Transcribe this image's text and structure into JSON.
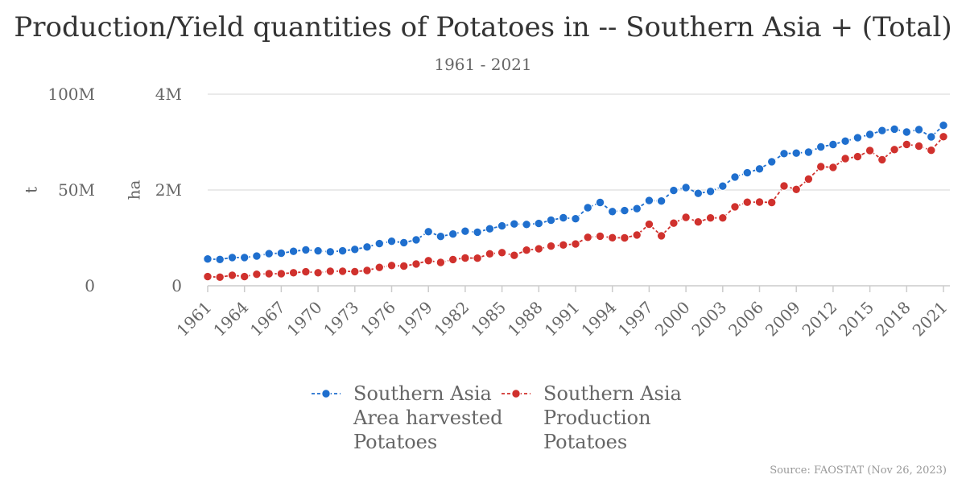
{
  "title": "Production/Yield quantities of Potatoes in -- Southern Asia + (Total)",
  "subtitle": "1961 - 2021",
  "source": "Source: FAOSTAT (Nov 26, 2023)",
  "chart_data": {
    "type": "line",
    "x": [
      1961,
      1962,
      1963,
      1964,
      1965,
      1966,
      1967,
      1968,
      1969,
      1970,
      1971,
      1972,
      1973,
      1974,
      1975,
      1976,
      1977,
      1978,
      1979,
      1980,
      1981,
      1982,
      1983,
      1984,
      1985,
      1986,
      1987,
      1988,
      1989,
      1990,
      1991,
      1992,
      1993,
      1994,
      1995,
      1996,
      1997,
      1998,
      1999,
      2000,
      2001,
      2002,
      2003,
      2004,
      2005,
      2006,
      2007,
      2008,
      2009,
      2010,
      2011,
      2012,
      2013,
      2014,
      2015,
      2016,
      2017,
      2018,
      2019,
      2020,
      2021
    ],
    "x_tick_labels": [
      "1961",
      "1964",
      "1967",
      "1970",
      "1973",
      "1976",
      "1979",
      "1982",
      "1985",
      "1988",
      "1991",
      "1994",
      "1997",
      "2000",
      "2003",
      "2006",
      "2009",
      "2012",
      "2015",
      "2018",
      "2021"
    ],
    "y_left": {
      "label": "t",
      "ticks": [
        "0",
        "50M",
        "100M"
      ],
      "range": [
        0,
        100000000
      ]
    },
    "y_right": {
      "label": "ha",
      "ticks": [
        "0",
        "2M",
        "4M"
      ],
      "range": [
        0,
        4000000
      ]
    },
    "grid": true,
    "legend_position": "bottom",
    "series": [
      {
        "name": "Southern Asia Area harvested Potatoes",
        "name_lines": [
          "Southern Asia",
          "Area harvested",
          "Potatoes"
        ],
        "axis": "right",
        "color": "#1f6fce",
        "values": [
          560000,
          550000,
          590000,
          590000,
          620000,
          670000,
          680000,
          720000,
          750000,
          730000,
          710000,
          730000,
          760000,
          810000,
          880000,
          930000,
          900000,
          960000,
          1130000,
          1030000,
          1080000,
          1140000,
          1120000,
          1190000,
          1250000,
          1290000,
          1280000,
          1300000,
          1370000,
          1420000,
          1400000,
          1630000,
          1740000,
          1550000,
          1570000,
          1610000,
          1780000,
          1770000,
          1990000,
          2050000,
          1930000,
          1970000,
          2080000,
          2270000,
          2360000,
          2440000,
          2590000,
          2760000,
          2770000,
          2790000,
          2900000,
          2950000,
          3020000,
          3090000,
          3160000,
          3240000,
          3270000,
          3210000,
          3260000,
          3110000,
          3350000
        ]
      },
      {
        "name": "Southern Asia Production Potatoes",
        "name_lines": [
          "Southern Asia",
          "Production",
          "Potatoes"
        ],
        "axis": "left",
        "color": "#d0312d",
        "values": [
          4800000,
          4500000,
          5500000,
          4800000,
          6000000,
          6300000,
          6300000,
          6800000,
          7300000,
          6800000,
          7600000,
          7600000,
          7400000,
          8000000,
          9600000,
          10600000,
          10300000,
          11400000,
          13100000,
          12200000,
          13700000,
          14500000,
          14400000,
          16700000,
          17300000,
          15900000,
          18600000,
          19300000,
          20700000,
          21300000,
          21800000,
          25300000,
          25900000,
          25100000,
          25000000,
          26500000,
          32100000,
          26100000,
          32700000,
          35700000,
          33300000,
          35400000,
          35400000,
          41200000,
          43600000,
          43700000,
          43500000,
          52100000,
          50300000,
          55700000,
          62200000,
          61800000,
          66400000,
          67400000,
          70600000,
          65800000,
          71100000,
          73800000,
          72900000,
          70700000,
          77800000
        ]
      }
    ]
  }
}
